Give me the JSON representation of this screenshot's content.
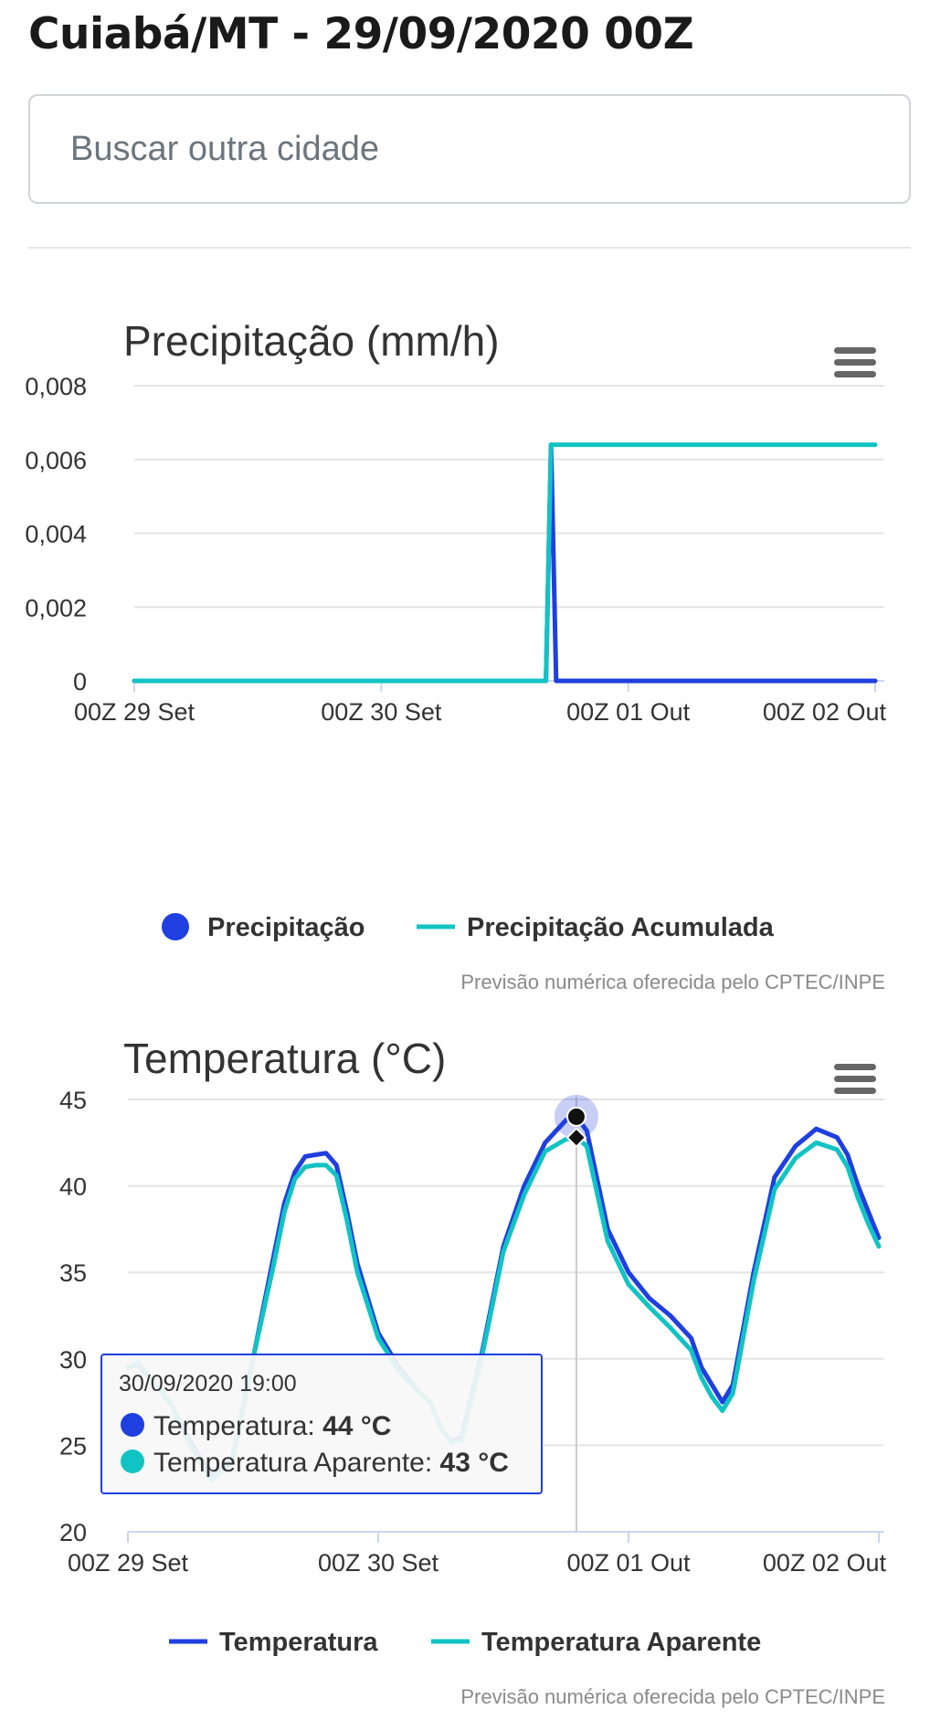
{
  "header": {
    "title": "Cuiabá/MT - 29/09/2020 00Z"
  },
  "search": {
    "placeholder": "Buscar outra cidade"
  },
  "colors": {
    "blue": "#1f3fe0",
    "teal": "#12c3c3",
    "grid": "#e4e4e4",
    "axis": "#ccd6eb",
    "text": "#333333",
    "muted": "#6b6b6b"
  },
  "icons": {
    "menu": "hamburger-menu-icon"
  },
  "charts": {
    "precip": {
      "title": "Precipitação (mm/h)",
      "credits": "Previsão numérica oferecida pelo CPTEC/INPE",
      "yticks": [
        "0",
        "0,002",
        "0,004",
        "0,006",
        "0,008"
      ],
      "xticks": [
        "00Z 29 Set",
        "00Z 30 Set",
        "00Z 01 Out",
        "00Z 02 Out"
      ],
      "legend": [
        "Precipitação",
        "Precipitação Acumulada"
      ]
    },
    "temp": {
      "title": "Temperatura (°C)",
      "credits": "Previsão numérica oferecida pelo CPTEC/INPE",
      "yticks": [
        "20",
        "25",
        "30",
        "35",
        "40",
        "45"
      ],
      "xticks": [
        "00Z 29 Set",
        "00Z 30 Set",
        "00Z 01 Out",
        "00Z 02 Out"
      ],
      "legend": [
        "Temperatura",
        "Temperatura Aparente"
      ],
      "tooltip": {
        "date": "30/09/2020 19:00",
        "label1": "Temperatura: ",
        "value1": "44 °C",
        "label2": "Temperatura Aparente: ",
        "value2": "43 °C"
      }
    }
  },
  "chart_data": [
    {
      "type": "line",
      "title": "Precipitação (mm/h)",
      "ylim": [
        0,
        0.008
      ],
      "x_unit": "hours after 00Z 29 Set",
      "xlim": [
        0,
        72
      ],
      "grid": true,
      "legend_position": "bottom",
      "series": [
        {
          "name": "Precipitação",
          "color": "#1f3fe0",
          "points": [
            [
              0,
              0
            ],
            [
              40,
              0
            ],
            [
              40.5,
              0.0064
            ],
            [
              41,
              0
            ],
            [
              72,
              0
            ]
          ]
        },
        {
          "name": "Precipitação Acumulada",
          "color": "#12c3c3",
          "points": [
            [
              0,
              0
            ],
            [
              40,
              0
            ],
            [
              40.5,
              0.0064
            ],
            [
              72,
              0.0064
            ]
          ]
        }
      ]
    },
    {
      "type": "line",
      "title": "Temperatura (°C)",
      "ylim": [
        20,
        45
      ],
      "x_unit": "hours after 00Z 29 Set",
      "xlim": [
        0,
        72
      ],
      "grid": true,
      "legend_position": "bottom",
      "highlight": {
        "x": 43,
        "label": "30/09/2020 19:00"
      },
      "series": [
        {
          "name": "Temperatura",
          "color": "#1f3fe0",
          "points": [
            [
              0,
              29.5
            ],
            [
              1,
              29.7
            ],
            [
              4,
              27.5
            ],
            [
              6,
              25.2
            ],
            [
              8,
              23.2
            ],
            [
              10,
              24.2
            ],
            [
              12,
              30
            ],
            [
              14,
              36
            ],
            [
              15,
              39
            ],
            [
              16,
              40.8
            ],
            [
              17,
              41.7
            ],
            [
              18,
              41.8
            ],
            [
              19,
              41.9
            ],
            [
              20,
              41.2
            ],
            [
              21,
              38.5
            ],
            [
              22,
              35.5
            ],
            [
              24,
              31.5
            ],
            [
              26,
              29.5
            ],
            [
              28,
              28
            ],
            [
              29,
              27.5
            ],
            [
              30,
              26
            ],
            [
              31,
              25.2
            ],
            [
              32,
              25.5
            ],
            [
              34,
              30.5
            ],
            [
              36,
              36.5
            ],
            [
              38,
              40
            ],
            [
              40,
              42.5
            ],
            [
              42,
              43.8
            ],
            [
              43,
              44
            ],
            [
              44,
              43.2
            ],
            [
              46,
              37.5
            ],
            [
              48,
              35
            ],
            [
              50,
              33.5
            ],
            [
              52,
              32.5
            ],
            [
              54,
              31.2
            ],
            [
              55,
              29.5
            ],
            [
              56,
              28.5
            ],
            [
              57,
              27.5
            ],
            [
              58,
              28.5
            ],
            [
              60,
              35
            ],
            [
              62,
              40.5
            ],
            [
              64,
              42.3
            ],
            [
              66,
              43.3
            ],
            [
              68,
              42.8
            ],
            [
              69,
              41.8
            ],
            [
              70,
              40
            ],
            [
              71,
              38.5
            ],
            [
              72,
              37
            ]
          ]
        },
        {
          "name": "Temperatura Aparente",
          "color": "#12c3c3",
          "points": [
            [
              0,
              29.5
            ],
            [
              1,
              29.8
            ],
            [
              4,
              27.5
            ],
            [
              6,
              25
            ],
            [
              8,
              23
            ],
            [
              10,
              24
            ],
            [
              12,
              30
            ],
            [
              14,
              35.5
            ],
            [
              15,
              38.5
            ],
            [
              16,
              40.4
            ],
            [
              17,
              41.1
            ],
            [
              18,
              41.2
            ],
            [
              19,
              41.2
            ],
            [
              20,
              40.6
            ],
            [
              21,
              38
            ],
            [
              22,
              35
            ],
            [
              24,
              31.2
            ],
            [
              26,
              29.3
            ],
            [
              28,
              28
            ],
            [
              29,
              27.5
            ],
            [
              30,
              26
            ],
            [
              31,
              25.2
            ],
            [
              32,
              25.3
            ],
            [
              34,
              30.3
            ],
            [
              36,
              36.2
            ],
            [
              38,
              39.5
            ],
            [
              40,
              42
            ],
            [
              42,
              42.7
            ],
            [
              43,
              42.8
            ],
            [
              44,
              42.3
            ],
            [
              46,
              36.8
            ],
            [
              48,
              34.3
            ],
            [
              50,
              33
            ],
            [
              52,
              31.8
            ],
            [
              54,
              30.5
            ],
            [
              55,
              28.9
            ],
            [
              56,
              27.8
            ],
            [
              57,
              27
            ],
            [
              58,
              28
            ],
            [
              60,
              34.5
            ],
            [
              62,
              39.8
            ],
            [
              64,
              41.6
            ],
            [
              66,
              42.5
            ],
            [
              68,
              42.1
            ],
            [
              69,
              41.1
            ],
            [
              70,
              39.3
            ],
            [
              71,
              37.8
            ],
            [
              72,
              36.5
            ]
          ]
        }
      ]
    }
  ]
}
